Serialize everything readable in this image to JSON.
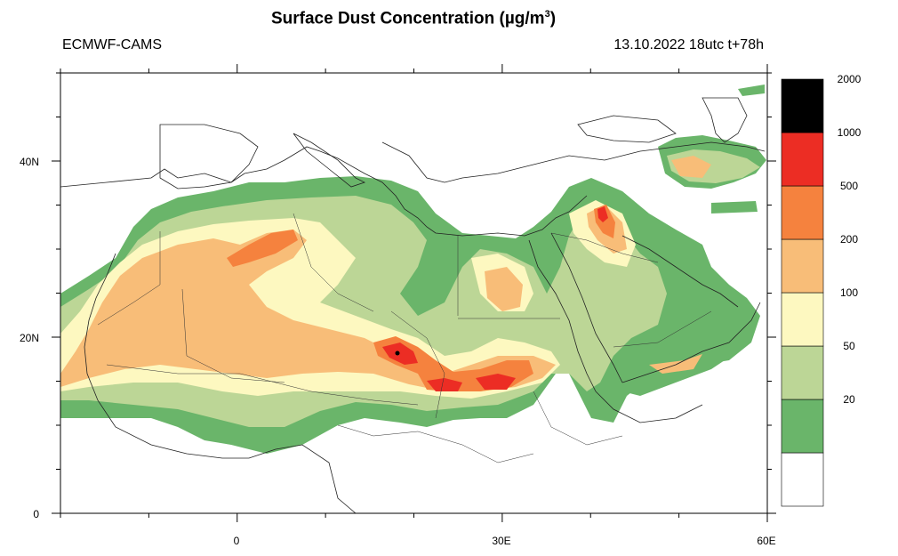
{
  "header": {
    "title_main": "Surface Dust Concentration (",
    "title_mu": "µ",
    "title_unit": "g/m",
    "title_exp": "3",
    "title_close": ")",
    "model": "ECMWF-CAMS",
    "run": "13.10.2022 18utc t+78h"
  },
  "axes": {
    "y_labels": [
      {
        "value": 40,
        "text": "40N"
      },
      {
        "value": 20,
        "text": "20N"
      },
      {
        "value": 0,
        "text": "0"
      }
    ],
    "x_labels": [
      {
        "value": 0,
        "text": "0"
      },
      {
        "value": 30,
        "text": "30E"
      },
      {
        "value": 60,
        "text": "60E"
      }
    ],
    "lon_range": [
      -20,
      60
    ],
    "lat_range": [
      0,
      50
    ]
  },
  "colorbar": {
    "levels": [
      {
        "label": "",
        "color": "#ffffff"
      },
      {
        "label": "20",
        "color": "#6ab56a"
      },
      {
        "label": "50",
        "color": "#bcd696"
      },
      {
        "label": "100",
        "color": "#fdf8c0"
      },
      {
        "label": "200",
        "color": "#f8bd78"
      },
      {
        "label": "500",
        "color": "#f5823e"
      },
      {
        "label": "1000",
        "color": "#ec2d24"
      },
      {
        "label": "2000",
        "color": "#000000"
      }
    ]
  }
}
